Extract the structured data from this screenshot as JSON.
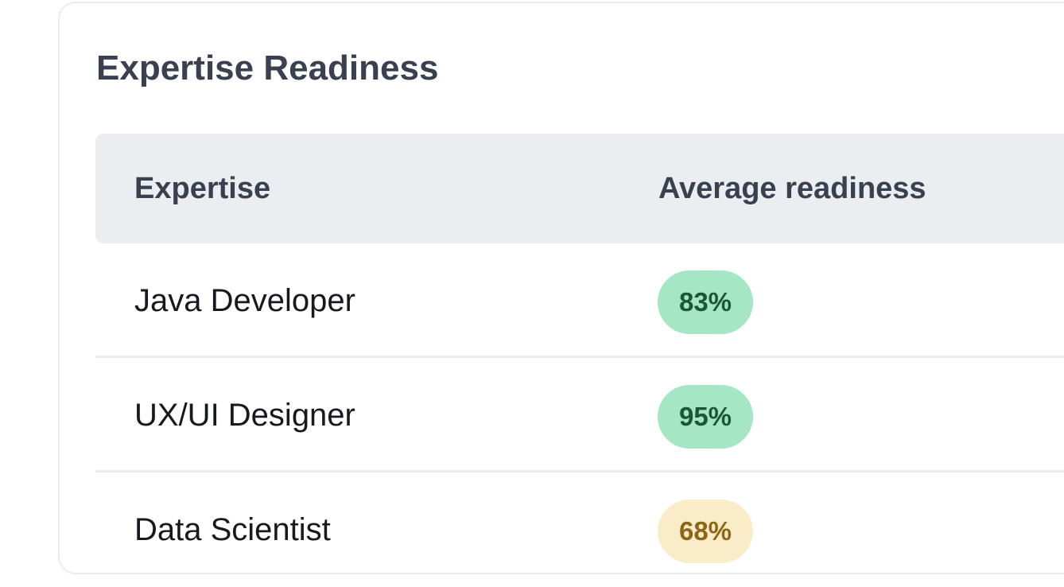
{
  "card": {
    "title": "Expertise Readiness"
  },
  "table": {
    "headers": [
      "Expertise",
      "Average readiness"
    ],
    "rows": [
      {
        "expertise": "Java Developer",
        "readiness": "83%",
        "status": "good",
        "status_color": "#a5e6c5"
      },
      {
        "expertise": "UX/UI Designer",
        "readiness": "95%",
        "status": "good",
        "status_color": "#a5e6c5"
      },
      {
        "expertise": "Data Scientist",
        "readiness": "68%",
        "status": "warn",
        "status_color": "#fbecc9"
      }
    ]
  },
  "colors": {
    "header_bg": "#ecedf1",
    "title_text": "#394150",
    "good_badge_text": "#1b5636",
    "warn_badge_text": "#8d6514"
  }
}
